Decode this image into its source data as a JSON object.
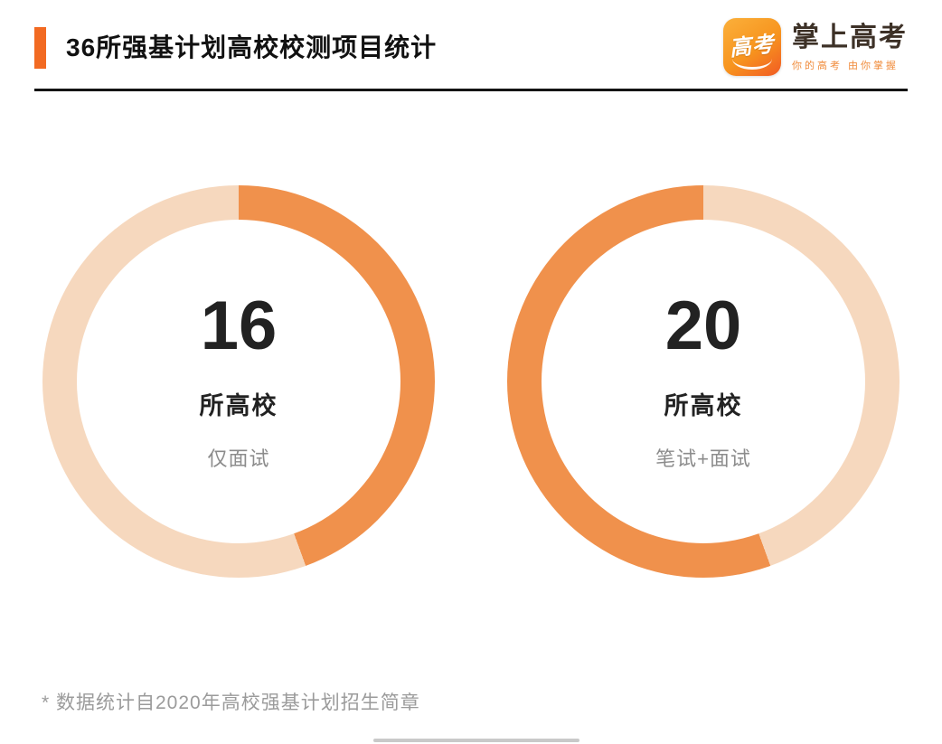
{
  "header": {
    "title": "36所强基计划高校校测项目统计",
    "logo": {
      "badge_text": "高考",
      "brand": "掌上高考",
      "tagline": "你的高考 由你掌握"
    }
  },
  "colors": {
    "accent": "#F26A22",
    "arc_dark": "#F0914C",
    "arc_light": "#F6D8BE",
    "divider": "#141414",
    "number": "#222222",
    "caption": "#8C8C8C",
    "tagline": "#F08C3C"
  },
  "chart_data": [
    {
      "type": "pie",
      "subtype": "donut",
      "total": 36,
      "start": "top",
      "direction": "clockwise",
      "segments": [
        {
          "label": "仅面试",
          "value": 16,
          "color_key": "arc_dark"
        },
        {
          "label": "",
          "value": 20,
          "color_key": "arc_light"
        }
      ],
      "center": {
        "number": "16",
        "unit": "所高校",
        "caption": "仅面试"
      }
    },
    {
      "type": "pie",
      "subtype": "donut",
      "total": 36,
      "start": "top",
      "direction": "clockwise",
      "segments": [
        {
          "label": "",
          "value": 16,
          "color_key": "arc_light"
        },
        {
          "label": "笔试+面试",
          "value": 20,
          "color_key": "arc_dark"
        }
      ],
      "center": {
        "number": "20",
        "unit": "所高校",
        "caption": "笔试+面试"
      }
    }
  ],
  "footnote": "* 数据统计自2020年高校强基计划招生简章"
}
